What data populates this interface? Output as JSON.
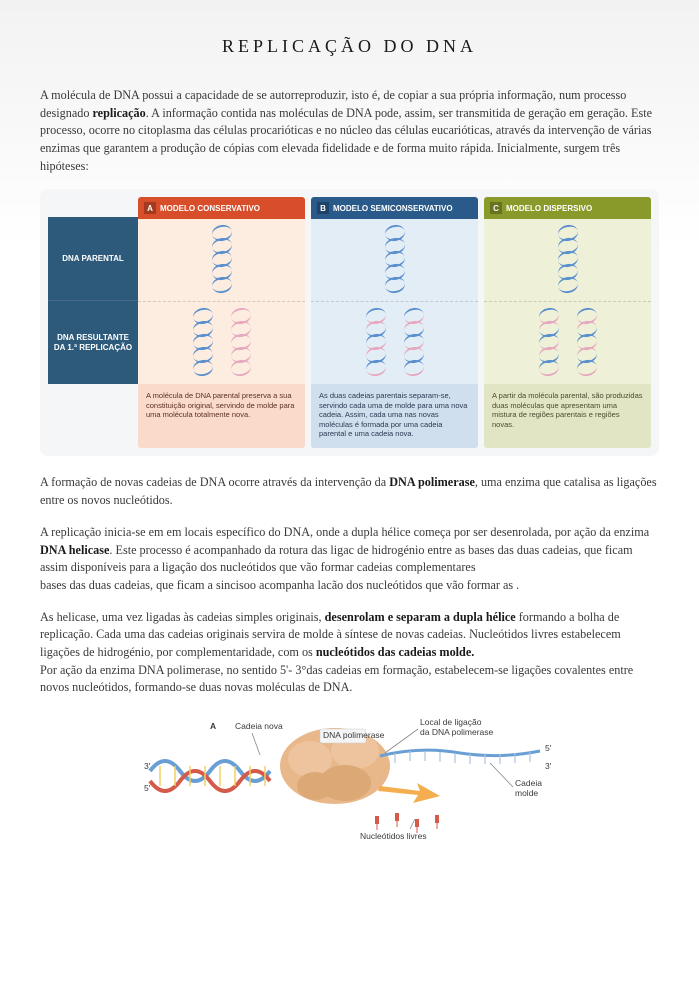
{
  "title": "REPLICAÇÃO DO DNA",
  "intro_html": "A molécula de DNA possui a capacidade de se autorreproduzir, isto é, de copiar a sua própria informação, num processo designado <strong>replicação</strong>. A informação contida nas moléculas de DNA pode, assim, ser transmitida de geração em geração. Este processo, ocorre no citoplasma das células procarióticas e no núcleo das células eucarióticas, através da intervenção de várias enzimas que garantem a produção de cópias com elevada fidelidade e de forma muito rápida. Inicialmente, surgem três hipóteses:",
  "diagram": {
    "row_top": "DNA PARENTAL",
    "row_bot": "DNA RESULTANTE DA 1.ª REPLICAÇÃO",
    "cols": [
      {
        "badge": "A",
        "header": "MODELO CONSERVATIVO",
        "caption": "A molécula de DNA parental preserva a sua constituição original, servindo de molde para uma molécula totalmente nova.",
        "top_helices": [
          "blue"
        ],
        "bottom_helices": [
          "blue",
          "pink"
        ],
        "header_color": "#d94e2a",
        "body_color": "#fdece0",
        "caption_color": "#fadacb"
      },
      {
        "badge": "B",
        "header": "MODELO SEMICONSERVATIVO",
        "caption": "As duas cadeias parentais separam-se, servindo cada uma de molde para uma nova cadeia. Assim, cada uma nas novas moléculas é formada por uma cadeia parental e uma cadeia nova.",
        "top_helices": [
          "blue"
        ],
        "bottom_helices": [
          "mix",
          "mix"
        ],
        "header_color": "#2a5a8a",
        "body_color": "#e3edf6",
        "caption_color": "#d0dfee"
      },
      {
        "badge": "C",
        "header": "MODELO DISPERSIVO",
        "caption": "A partir da molécula parental, são produzidas duas moléculas que apresentam uma mistura de regiões parentais e regiões novas.",
        "top_helices": [
          "blue"
        ],
        "bottom_helices": [
          "mix",
          "mix"
        ],
        "header_color": "#8a9a2a",
        "body_color": "#eef0d8",
        "caption_color": "#e2e5c4"
      }
    ]
  },
  "p2_html": "A formação de novas cadeias de DNA ocorre através da intervenção da <strong>DNA polimerase</strong>, uma enzima que catalisa as ligações entre os novos nucleótidos.",
  "p3_html": "A replicação inicia-se em em locais específico do DNA, onde a dupla hélice começa por ser desenrolada, por ação da enzima <strong>DNA helicase</strong>. Este processo  é acompanhado da rotura das ligac de hidrogénio entre as bases das duas cadeias, que ficam assim disponíveis para a ligação dos nucleótidos que vão formar cadeias complementares<br>bases das duas cadeias, que ficam a sincisoo acompanha lacão dos nucleótidos que vão formar as .",
  "p4_html": "As helicase, uma vez ligadas às cadeias simples originais, <strong>desenrolam e separam a dupla hélice</strong> formando a bolha de replicação. Cada uma das cadeias originais servira de molde à síntese de novas cadeias. Nucleótidos livres estabelecem ligações de hidrogénio, por complementaridade, com os <strong>nucleótidos das cadeias molde.</strong><br>Por ação da enzima DNA polimerase, no sentido 5'- 3°das cadeias em formação, estabelecem-se ligações covalentes entre novos nucleótidos, formando-se duas novas moléculas de DNA.",
  "diagram2": {
    "label_a": "A",
    "cadeia_nova": "Cadeia nova",
    "dna_polimerase": "DNA polimerase",
    "local_ligacao": "Local de ligação da DNA polimerase",
    "cadeia_molde": "Cadeia molde",
    "nucleotidos_livres": "Nucleótidos livres",
    "five_prime": "5'",
    "three_prime": "3'",
    "colors": {
      "protein": "#e8b88a",
      "protein_dark": "#c99560",
      "old_strand": "#6a9fd6",
      "new_strand": "#d45a4a",
      "rungs": "#f0d060",
      "arrow": "#f2a030"
    }
  }
}
